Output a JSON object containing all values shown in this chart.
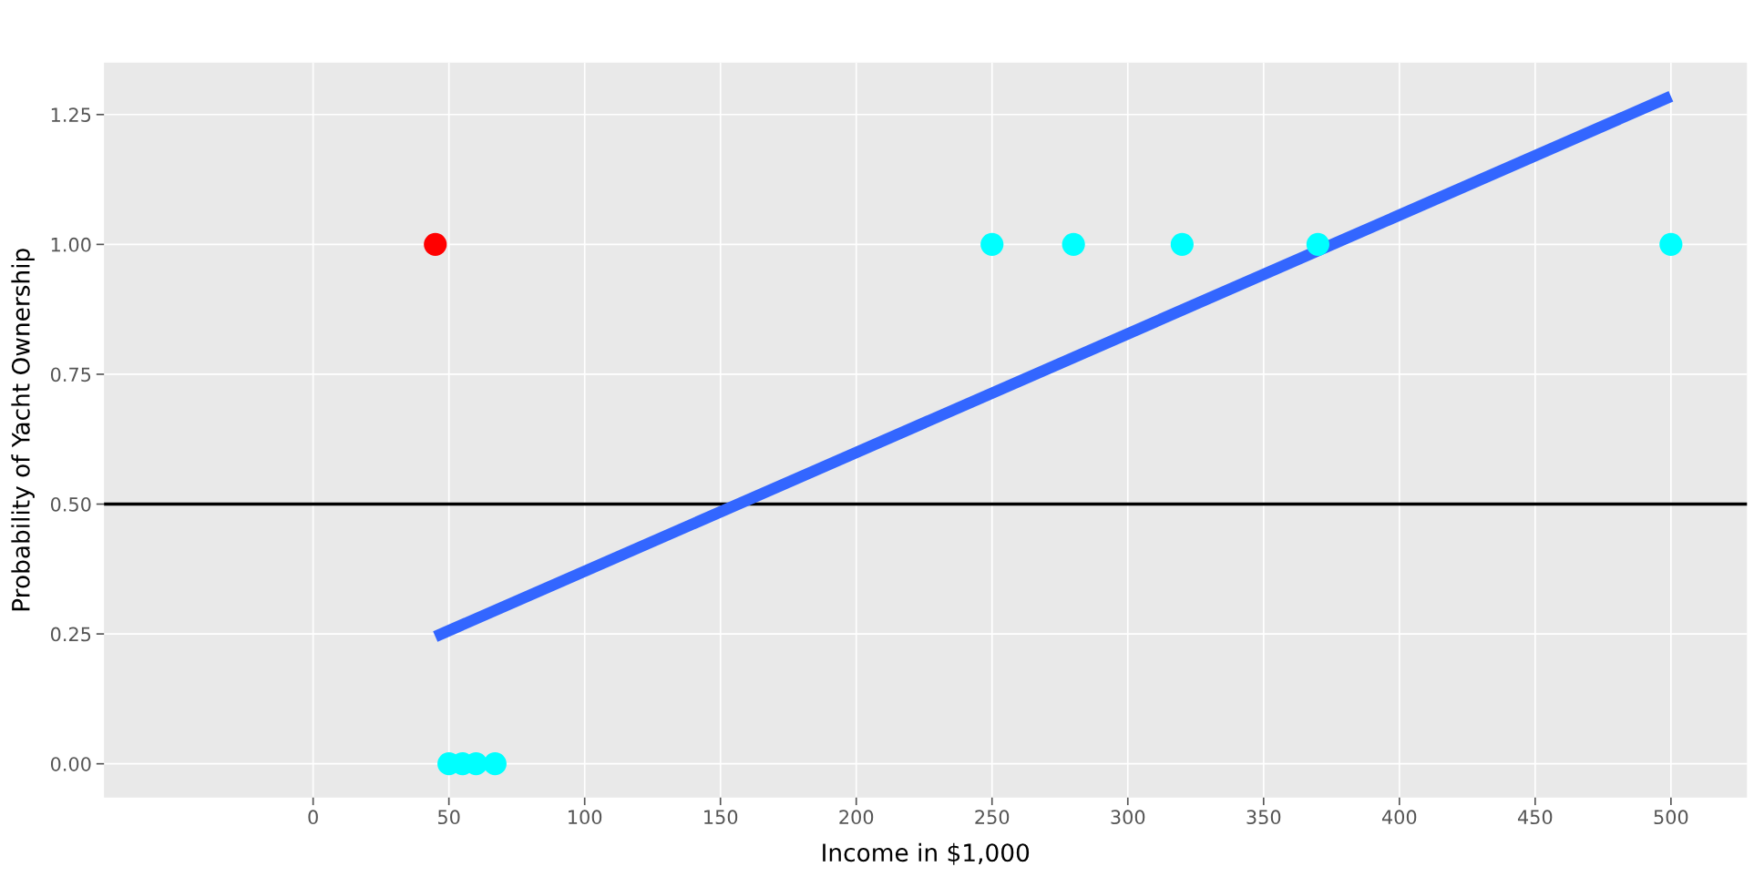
{
  "chart_data": {
    "type": "scatter",
    "xlabel": "Income in $1,000",
    "ylabel": "Probability of Yacht Ownership",
    "xlim": [
      -77,
      528
    ],
    "ylim": [
      -0.065,
      1.35
    ],
    "xticks": [
      0,
      50,
      100,
      150,
      200,
      250,
      300,
      350,
      400,
      450,
      500
    ],
    "yticks": [
      {
        "value": 0,
        "label": "0.00"
      },
      {
        "value": 0.25,
        "label": "0.25"
      },
      {
        "value": 0.5,
        "label": "0.50"
      },
      {
        "value": 0.75,
        "label": "0.75"
      },
      {
        "value": 1,
        "label": "1.00"
      },
      {
        "value": 1.25,
        "label": "1.25"
      }
    ],
    "grid": true,
    "series": [
      {
        "type": "line",
        "color": "#3366ff",
        "x": [
          45,
          500
        ],
        "values": [
          0.245,
          1.285
        ]
      },
      {
        "marker": "circle",
        "color": "#ff0000",
        "x": [
          45
        ],
        "values": [
          1
        ]
      },
      {
        "marker": "circle",
        "color": "#00ffff",
        "x": [
          50,
          55,
          60,
          67,
          250,
          280,
          320,
          370,
          500
        ],
        "values": [
          0,
          0,
          0,
          0,
          1,
          1,
          1,
          1,
          1
        ]
      }
    ],
    "ref_lines": [
      {
        "axis": "y",
        "value": 0.5,
        "color": "#000000",
        "line_style": "solid"
      }
    ]
  }
}
